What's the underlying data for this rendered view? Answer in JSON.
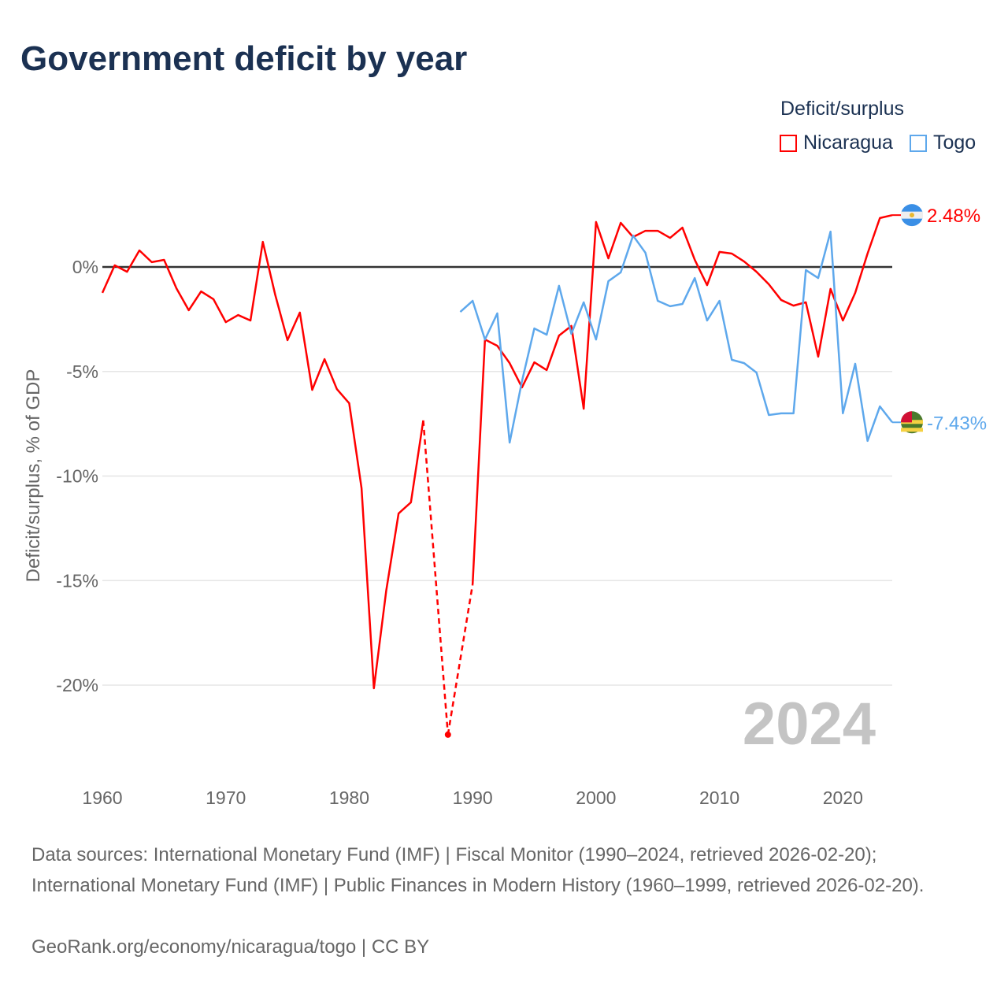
{
  "title": "Government deficit by year",
  "legend": {
    "title": "Deficit/surplus",
    "items": [
      {
        "name": "Nicaragua",
        "color": "#ff0000"
      },
      {
        "name": "Togo",
        "color": "#5ea8ec"
      }
    ]
  },
  "year_watermark": "2024",
  "footer": {
    "sources": "Data sources: International Monetary Fund (IMF) | Fiscal Monitor (1990–2024, retrieved 2026-02-20); International Monetary Fund (IMF) | Public Finances in Modern History (1960–1999, retrieved 2026-02-20).",
    "credit": "GeoRank.org/economy/nicaragua/togo | CC BY"
  },
  "chart_data": {
    "type": "line",
    "title": "Government deficit by year",
    "xlabel": "",
    "ylabel": "Deficit/surplus, % of GDP",
    "xlim": [
      1960,
      2024
    ],
    "ylim": [
      -23.5,
      4
    ],
    "x_ticks": [
      1960,
      1970,
      1980,
      1990,
      2000,
      2010,
      2020
    ],
    "x_tick_labels": [
      "1960",
      "1970",
      "1980",
      "1990",
      "2000",
      "2010",
      "2020"
    ],
    "y_ticks": [
      0,
      -5,
      -10,
      -15,
      -20
    ],
    "y_tick_labels": [
      "0%",
      "-5%",
      "-10%",
      "-15%",
      "-20%"
    ],
    "series": [
      {
        "name": "Nicaragua",
        "color": "#ff0000",
        "end_label": "2.48%",
        "start_year": 1960,
        "values": [
          -1.24,
          0.08,
          -0.23,
          0.79,
          0.23,
          0.34,
          -1.02,
          -2.07,
          -1.17,
          -1.54,
          -2.64,
          -2.3,
          -2.56,
          1.2,
          -1.32,
          -3.5,
          -2.18,
          -5.88,
          -4.41,
          -5.84,
          -6.52,
          -10.58,
          -20.15,
          -15.48,
          -11.79,
          -11.26,
          -7.34,
          null,
          -22.37,
          null,
          -15.18,
          -3.47,
          -3.77,
          -4.6,
          -5.76,
          -4.56,
          -4.93,
          -3.28,
          -2.82,
          -6.78,
          2.15,
          0.41,
          2.11,
          1.43,
          1.73,
          1.73,
          1.39,
          1.88,
          0.34,
          -0.87,
          0.72,
          0.64,
          0.26,
          -0.23,
          -0.83,
          -1.58,
          -1.85,
          -1.69,
          -4.29,
          -1.05,
          -2.56,
          -1.24,
          0.64,
          2.34,
          2.48
        ]
      },
      {
        "name": "Togo",
        "color": "#5ea8ec",
        "end_label": "-7.43%",
        "start_year": 1989,
        "values": [
          -2.15,
          -1.62,
          -3.47,
          -2.22,
          -8.4,
          -5.46,
          -2.94,
          -3.24,
          -0.9,
          -3.2,
          -1.69,
          -3.47,
          -0.68,
          -0.26,
          1.5,
          0.68,
          -1.62,
          -1.88,
          -1.77,
          -0.53,
          -2.56,
          -1.62,
          -4.44,
          -4.6,
          -5.05,
          -7.08,
          -7.0,
          -7.0,
          -0.15,
          -0.53,
          1.69,
          -7.0,
          -4.63,
          -8.32,
          -6.67,
          -7.43
        ]
      }
    ]
  }
}
